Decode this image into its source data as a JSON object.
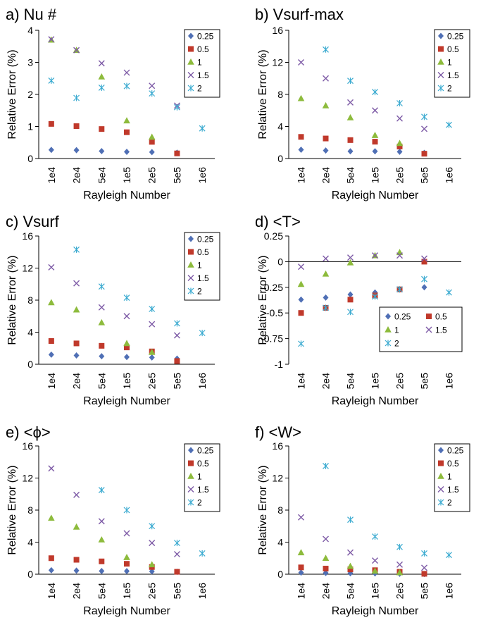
{
  "colors": {
    "0.25": "#4f6fb5",
    "0.5": "#c0392b",
    "1": "#8dbb3c",
    "1.5": "#7d5aa6",
    "2": "#3aaad0"
  },
  "chart_data": [
    {
      "type": "scatter",
      "title": "a) Nu #",
      "xlabel": "Rayleigh Number",
      "ylabel": "Relative Error (%)",
      "categories": [
        "1e4",
        "2e4",
        "5e4",
        "1e5",
        "2e5",
        "5e5",
        "1e6"
      ],
      "ylim": [
        0,
        4
      ],
      "yticks": [
        "0",
        "1",
        "2",
        "3",
        "4"
      ],
      "legend_title": "",
      "legend_layout": "column",
      "series": [
        {
          "name": "0.25",
          "marker": "diamond",
          "values": [
            0.27,
            0.26,
            0.23,
            0.21,
            0.2,
            0.18,
            null
          ]
        },
        {
          "name": "0.5",
          "marker": "square",
          "values": [
            1.08,
            1.01,
            0.92,
            0.82,
            0.52,
            0.16,
            null
          ]
        },
        {
          "name": "1",
          "marker": "triangle",
          "values": [
            3.7,
            3.38,
            2.55,
            1.18,
            0.67,
            null,
            null
          ]
        },
        {
          "name": "1.5",
          "marker": "x",
          "values": [
            3.72,
            3.38,
            2.97,
            2.68,
            2.27,
            1.65,
            null
          ]
        },
        {
          "name": "2",
          "marker": "star",
          "values": [
            2.43,
            1.89,
            2.21,
            2.26,
            2.03,
            1.6,
            0.94
          ]
        }
      ]
    },
    {
      "type": "scatter",
      "title": "b) Vsurf-max",
      "xlabel": "Rayleigh Number",
      "ylabel": "Relative Error (%)",
      "categories": [
        "1e4",
        "2e4",
        "5e4",
        "1e5",
        "2e5",
        "5e5",
        "1e6"
      ],
      "ylim": [
        0,
        16
      ],
      "yticks": [
        "0",
        "4",
        "8",
        "12",
        "16"
      ],
      "legend_layout": "column",
      "series": [
        {
          "name": "0.25",
          "marker": "diamond",
          "values": [
            1.1,
            1.0,
            0.9,
            0.9,
            0.85,
            0.7,
            null
          ]
        },
        {
          "name": "0.5",
          "marker": "square",
          "values": [
            2.7,
            2.5,
            2.3,
            2.1,
            1.5,
            0.6,
            null
          ]
        },
        {
          "name": "1",
          "marker": "triangle",
          "values": [
            7.5,
            6.6,
            5.1,
            2.9,
            1.9,
            null,
            null
          ]
        },
        {
          "name": "1.5",
          "marker": "x",
          "values": [
            12.0,
            10.0,
            7.0,
            6.0,
            5.0,
            3.7,
            null
          ]
        },
        {
          "name": "2",
          "marker": "star",
          "values": [
            null,
            13.6,
            9.7,
            8.3,
            6.9,
            5.2,
            4.2
          ]
        }
      ]
    },
    {
      "type": "scatter",
      "title": "c) Vsurf",
      "xlabel": "Rayleigh Number",
      "ylabel": "Relative Error (%)",
      "categories": [
        "1e4",
        "2e4",
        "5e4",
        "1e5",
        "2e5",
        "5e5",
        "1e6"
      ],
      "ylim": [
        0,
        16
      ],
      "yticks": [
        "0",
        "4",
        "8",
        "12",
        "16"
      ],
      "legend_layout": "column",
      "series": [
        {
          "name": "0.25",
          "marker": "diamond",
          "values": [
            1.2,
            1.1,
            1.0,
            0.9,
            0.85,
            0.7,
            null
          ]
        },
        {
          "name": "0.5",
          "marker": "square",
          "values": [
            2.9,
            2.6,
            2.3,
            2.1,
            1.6,
            0.4,
            null
          ]
        },
        {
          "name": "1",
          "marker": "triangle",
          "values": [
            7.7,
            6.8,
            5.2,
            2.6,
            1.5,
            null,
            null
          ]
        },
        {
          "name": "1.5",
          "marker": "x",
          "values": [
            12.1,
            10.1,
            7.1,
            6.0,
            5.0,
            3.6,
            null
          ]
        },
        {
          "name": "2",
          "marker": "star",
          "values": [
            null,
            14.3,
            9.7,
            8.3,
            6.9,
            5.1,
            3.9
          ]
        }
      ]
    },
    {
      "type": "scatter",
      "title": "d) <T>",
      "xlabel": "Rayleigh Number",
      "ylabel": "Relative Error (%)",
      "categories": [
        "1e4",
        "2e4",
        "5e4",
        "1e5",
        "2e5",
        "5e5",
        "1e6"
      ],
      "ylim": [
        -1,
        0.25
      ],
      "yticks": [
        "-1",
        "-0.75",
        "-0.5",
        "-0.25",
        "0",
        "0.25"
      ],
      "legend_layout": "grid",
      "series": [
        {
          "name": "0.25",
          "marker": "diamond",
          "values": [
            -0.37,
            -0.35,
            -0.32,
            -0.3,
            -0.27,
            -0.25,
            null
          ]
        },
        {
          "name": "0.5",
          "marker": "square",
          "values": [
            -0.5,
            -0.45,
            -0.37,
            -0.33,
            -0.27,
            0.0,
            null
          ]
        },
        {
          "name": "1",
          "marker": "triangle",
          "values": [
            -0.22,
            -0.12,
            -0.01,
            0.06,
            0.09,
            null,
            null
          ]
        },
        {
          "name": "1.5",
          "marker": "x",
          "values": [
            -0.05,
            0.03,
            0.04,
            0.06,
            0.06,
            0.03,
            null
          ]
        },
        {
          "name": "2",
          "marker": "star",
          "values": [
            -0.8,
            -0.45,
            -0.49,
            -0.34,
            -0.27,
            -0.17,
            -0.3
          ]
        }
      ]
    },
    {
      "type": "scatter",
      "title": "e) <ϕ>",
      "xlabel": "Rayleigh Number",
      "ylabel": "Relative Error (%)",
      "categories": [
        "1e4",
        "2e4",
        "5e4",
        "1e5",
        "2e5",
        "5e5",
        "1e6"
      ],
      "ylim": [
        0,
        16
      ],
      "yticks": [
        "0",
        "4",
        "8",
        "12",
        "16"
      ],
      "legend_layout": "column",
      "series": [
        {
          "name": "0.25",
          "marker": "diamond",
          "values": [
            0.5,
            0.45,
            0.4,
            0.38,
            0.35,
            0.3,
            null
          ]
        },
        {
          "name": "0.5",
          "marker": "square",
          "values": [
            2.0,
            1.8,
            1.6,
            1.3,
            0.9,
            0.3,
            null
          ]
        },
        {
          "name": "1",
          "marker": "triangle",
          "values": [
            7.0,
            5.9,
            4.3,
            2.1,
            1.2,
            null,
            null
          ]
        },
        {
          "name": "1.5",
          "marker": "x",
          "values": [
            13.2,
            9.9,
            6.6,
            5.1,
            3.9,
            2.5,
            null
          ]
        },
        {
          "name": "2",
          "marker": "star",
          "values": [
            null,
            null,
            10.5,
            8.0,
            6.0,
            3.9,
            2.6
          ]
        }
      ]
    },
    {
      "type": "scatter",
      "title": "f) <W>",
      "xlabel": "Rayleigh Number",
      "ylabel": "Relative Error (%)",
      "categories": [
        "1e4",
        "2e4",
        "5e4",
        "1e5",
        "2e5",
        "5e5",
        "1e6"
      ],
      "ylim": [
        0,
        16
      ],
      "yticks": [
        "0",
        "4",
        "8",
        "12",
        "16"
      ],
      "legend_layout": "column",
      "series": [
        {
          "name": "0.25",
          "marker": "diamond",
          "values": [
            0.2,
            0.15,
            0.12,
            0.1,
            0.05,
            0.02,
            null
          ]
        },
        {
          "name": "0.5",
          "marker": "square",
          "values": [
            0.85,
            0.7,
            0.6,
            0.5,
            0.3,
            0.05,
            null
          ]
        },
        {
          "name": "1",
          "marker": "triangle",
          "values": [
            2.7,
            2.0,
            1.0,
            0.4,
            0.2,
            null,
            null
          ]
        },
        {
          "name": "1.5",
          "marker": "x",
          "values": [
            7.1,
            4.4,
            2.7,
            1.7,
            1.2,
            0.8,
            null
          ]
        },
        {
          "name": "2",
          "marker": "star",
          "values": [
            null,
            13.5,
            6.8,
            4.7,
            3.4,
            2.6,
            2.4
          ]
        }
      ]
    }
  ]
}
